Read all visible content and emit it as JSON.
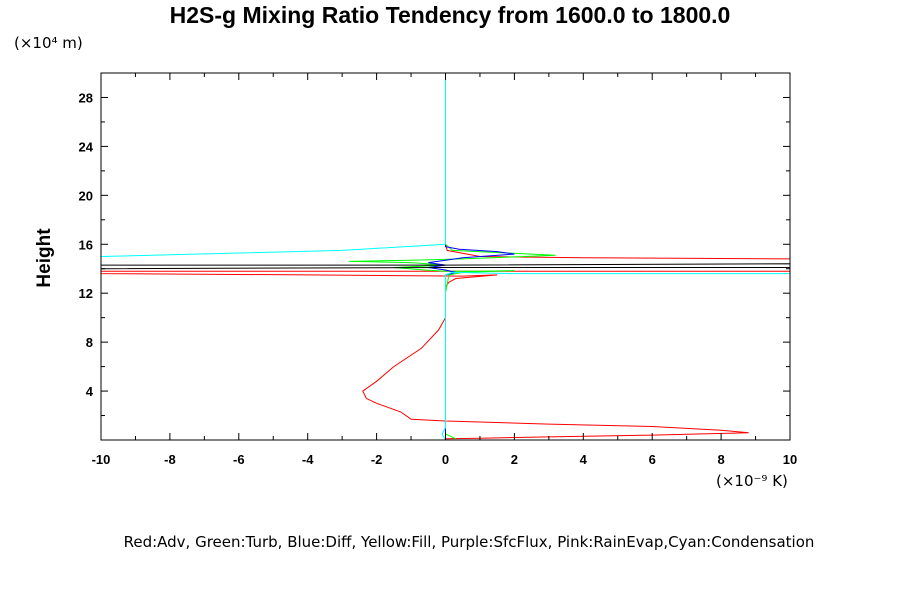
{
  "chart_data": {
    "type": "line",
    "title": "H2S-g Mixing Ratio Tendency from 1600.0 to 1800.0",
    "ylabel": "Height",
    "y_units": "(×10⁴ m)",
    "x_units": "(×10⁻⁹ K)",
    "xlim": [
      -10,
      10
    ],
    "ylim": [
      0,
      30
    ],
    "x_ticks": [
      -10,
      -8,
      -6,
      -4,
      -2,
      0,
      2,
      4,
      6,
      8,
      10
    ],
    "y_ticks": [
      4,
      8,
      12,
      16,
      20,
      24,
      28
    ],
    "legend_text": "Red:Adv, Green:Turb, Blue:Diff, Yellow:Fill, Purple:SfcFlux, Pink:RainEvap,Cyan:Condensation",
    "series": [
      {
        "color": "#ff0000",
        "points": [
          [
            0,
            30
          ],
          [
            0,
            16
          ],
          [
            0.05,
            15.5
          ],
          [
            1,
            15
          ],
          [
            4,
            14.9
          ],
          [
            10,
            14.8
          ],
          [
            10,
            13.8
          ],
          [
            0,
            13.8
          ],
          [
            -10,
            13.8
          ],
          [
            -10,
            13.6
          ],
          [
            -4,
            13.5
          ],
          [
            0.5,
            13.4
          ],
          [
            1.5,
            13.5
          ],
          [
            0.3,
            13.2
          ],
          [
            0.1,
            12.9
          ],
          [
            0,
            12.5
          ],
          [
            0,
            10
          ],
          [
            -0.2,
            9
          ],
          [
            -0.7,
            7.5
          ],
          [
            -1.5,
            6
          ],
          [
            -2,
            4.8
          ],
          [
            -2.4,
            4
          ],
          [
            -2.3,
            3.4
          ],
          [
            -2,
            3
          ],
          [
            -1.3,
            2.3
          ],
          [
            -1,
            1.7
          ],
          [
            0,
            1.55
          ],
          [
            3,
            1.3
          ],
          [
            6,
            1.1
          ],
          [
            8,
            0.8
          ],
          [
            8.8,
            0.6
          ],
          [
            6,
            0.4
          ],
          [
            3,
            0.25
          ],
          [
            1,
            0.15
          ],
          [
            0,
            0.1
          ]
        ]
      },
      {
        "color": "#00ff00",
        "points": [
          [
            0,
            30
          ],
          [
            0,
            16
          ],
          [
            0.2,
            15.5
          ],
          [
            3.2,
            15.1
          ],
          [
            0.5,
            14.8
          ],
          [
            -1,
            14.7
          ],
          [
            -2.8,
            14.6
          ],
          [
            -1,
            14.5
          ],
          [
            0,
            14.3
          ],
          [
            -1.5,
            14.1
          ],
          [
            -0.6,
            13.9
          ],
          [
            0,
            13.8
          ],
          [
            1,
            13.8
          ],
          [
            2,
            13.85
          ],
          [
            0.5,
            13.7
          ],
          [
            0.1,
            13.5
          ],
          [
            0,
            12
          ],
          [
            0,
            0.5
          ],
          [
            0.15,
            0.3
          ],
          [
            0.3,
            0.1
          ]
        ]
      },
      {
        "color": "#0000ff",
        "points": [
          [
            0,
            30
          ],
          [
            0,
            15.8
          ],
          [
            0.4,
            15.6
          ],
          [
            1.5,
            15.4
          ],
          [
            2,
            15.2
          ],
          [
            0.5,
            14.9
          ],
          [
            0,
            14.7
          ],
          [
            -0.5,
            14.5
          ],
          [
            0,
            14.3
          ],
          [
            -0.5,
            14.1
          ],
          [
            0,
            13.9
          ],
          [
            0.3,
            13.7
          ],
          [
            0,
            13.5
          ],
          [
            0,
            0
          ]
        ]
      },
      {
        "color": "#000000",
        "points": [
          [
            -10,
            14.3
          ],
          [
            0,
            14.3
          ],
          [
            10,
            14.4
          ],
          [
            10,
            14.1
          ],
          [
            0,
            14.1
          ],
          [
            -10,
            14
          ]
        ]
      },
      {
        "color": "#00ffff",
        "points": [
          [
            0,
            30
          ],
          [
            0,
            16
          ],
          [
            -3,
            15.5
          ],
          [
            -10,
            15
          ]
        ]
      },
      {
        "color": "#00ffff",
        "points": [
          [
            10,
            13.6
          ],
          [
            2,
            13.6
          ],
          [
            0.2,
            13.7
          ],
          [
            0,
            13.5
          ],
          [
            0,
            1
          ],
          [
            -0.1,
            0.5
          ],
          [
            0,
            0
          ]
        ]
      }
    ]
  }
}
